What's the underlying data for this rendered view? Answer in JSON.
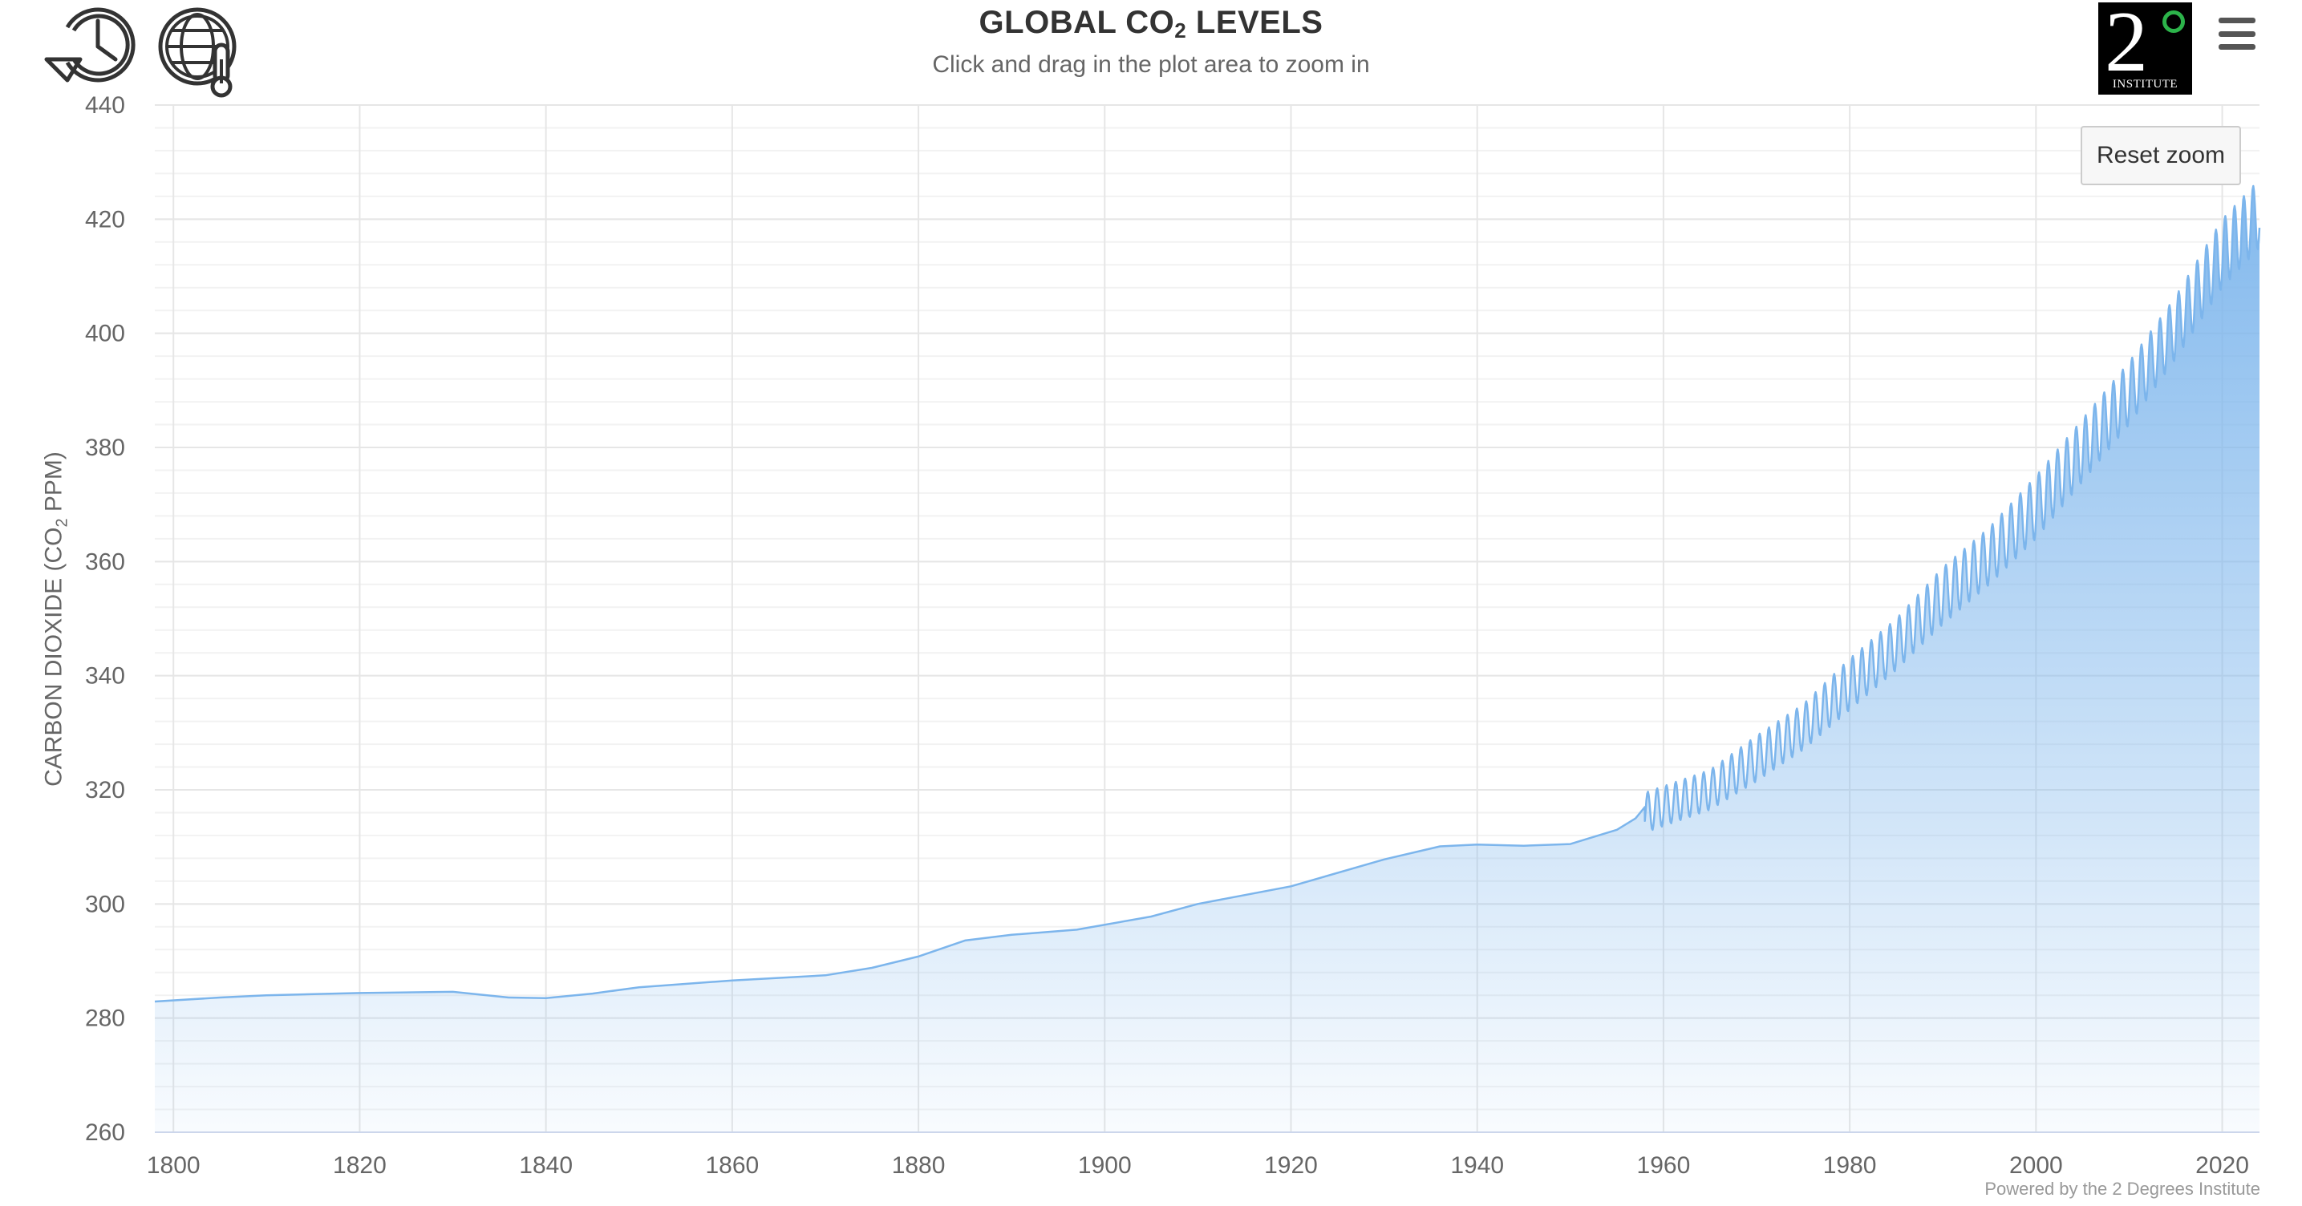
{
  "header": {
    "title_prefix": "GLOBAL CO",
    "title_sub": "2",
    "title_suffix": " LEVELS",
    "subtitle": "Click and drag in the plot area to zoom in"
  },
  "toolbar": {
    "history_icon": "history-icon",
    "globe_thermometer_icon": "globe-thermometer-icon",
    "menu_icon": "hamburger-menu-icon",
    "reset_zoom_label": "Reset zoom"
  },
  "logo": {
    "numeral": "2",
    "text": "INSTITUTE"
  },
  "credits": "Powered by the 2 Degrees Institute",
  "colors": {
    "series_line": "#7cb5ec",
    "grid": "#e6e6e6",
    "text": "#666666"
  },
  "chart_data": {
    "type": "area",
    "title": "GLOBAL CO2 LEVELS",
    "subtitle": "Click and drag in the plot area to zoom in",
    "xlabel": "",
    "ylabel_prefix": "CARBON DIOXIDE (CO",
    "ylabel_sub": "2",
    "ylabel_suffix": " PPM)",
    "xlim": [
      1798,
      2024
    ],
    "ylim": [
      260,
      440
    ],
    "x_ticks": [
      1800,
      1820,
      1840,
      1860,
      1880,
      1900,
      1920,
      1940,
      1960,
      1980,
      2000,
      2020
    ],
    "y_ticks": [
      260,
      280,
      300,
      320,
      340,
      360,
      380,
      400,
      420,
      440
    ],
    "grid": true,
    "legend": "none",
    "series": [
      {
        "smoothed_x": [
          1798,
          1805,
          1810,
          1820,
          1830,
          1836,
          1840,
          1845,
          1850,
          1860,
          1870,
          1875,
          1880,
          1885,
          1890,
          1897,
          1905,
          1910,
          1920,
          1930,
          1936,
          1940,
          1945,
          1950,
          1955,
          1957,
          1958
        ],
        "smoothed_y": [
          282.9,
          283.6,
          284.0,
          284.4,
          284.6,
          283.6,
          283.5,
          284.3,
          285.4,
          286.6,
          287.5,
          288.8,
          290.8,
          293.6,
          294.6,
          295.5,
          297.8,
          300.0,
          303.1,
          307.8,
          310.1,
          310.4,
          310.2,
          310.5,
          313.0,
          315.0,
          317.0
        ],
        "monthly_trend_x": [
          1958,
          1965,
          1970,
          1975,
          1980,
          1985,
          1990,
          1995,
          2000,
          2005,
          2010,
          2015,
          2020,
          2024
        ],
        "monthly_trend_y": [
          316.0,
          320.0,
          325.5,
          331.0,
          338.5,
          345.5,
          354.0,
          361.0,
          369.5,
          379.5,
          389.5,
          401.0,
          414.0,
          421.0
        ],
        "seasonal_amplitude_ppm": [
          3.5,
          3.5,
          4.0,
          4.0,
          4.5,
          4.5,
          5.0,
          5.0,
          5.5,
          5.5,
          5.5,
          5.5,
          6.0,
          6.0
        ]
      }
    ]
  }
}
